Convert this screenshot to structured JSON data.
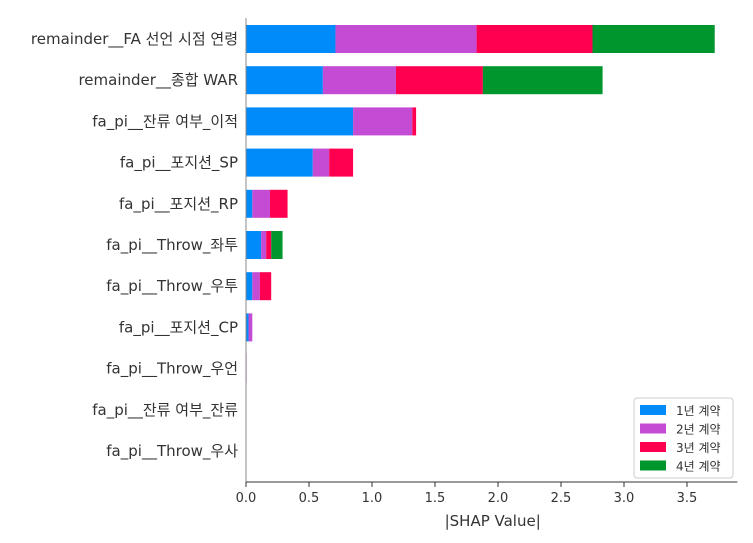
{
  "chart_data": {
    "type": "bar",
    "orientation": "horizontal",
    "stacked": true,
    "xlabel": "|SHAP Value|",
    "xlim": [
      0,
      3.9
    ],
    "xticks": [
      "0.0",
      "0.5",
      "1.0",
      "1.5",
      "2.0",
      "2.5",
      "3.0",
      "3.5"
    ],
    "grid": false,
    "legend_position": "bottom-right",
    "categories": [
      "remainder__FA 선언 시점 연령",
      "remainder__종합 WAR",
      "fa_pi__잔류 여부_이적",
      "fa_pi__포지션_SP",
      "fa_pi__포지션_RP",
      "fa_pi__Throw_좌투",
      "fa_pi__Throw_우투",
      "fa_pi__포지션_CP",
      "fa_pi__Throw_우언",
      "fa_pi__잔류 여부_잔류",
      "fa_pi__Throw_우사"
    ],
    "series": [
      {
        "name": "1년 계약",
        "color": "#008bfb",
        "values": [
          0.71,
          0.61,
          0.85,
          0.53,
          0.05,
          0.12,
          0.05,
          0.02,
          0.0,
          0.0,
          0.0
        ]
      },
      {
        "name": "2년 계약",
        "color": "#c44bd4",
        "values": [
          1.12,
          0.58,
          0.47,
          0.13,
          0.14,
          0.04,
          0.06,
          0.03,
          0.005,
          0.0,
          0.0
        ]
      },
      {
        "name": "3년 계약",
        "color": "#ff0051",
        "values": [
          0.92,
          0.69,
          0.03,
          0.19,
          0.14,
          0.04,
          0.09,
          0.0,
          0.0,
          0.0,
          0.0
        ]
      },
      {
        "name": "4년 계약",
        "color": "#00962e",
        "values": [
          0.97,
          0.95,
          0.0,
          0.0,
          0.0,
          0.09,
          0.0,
          0.0,
          0.0,
          0.0,
          0.0
        ]
      }
    ]
  }
}
